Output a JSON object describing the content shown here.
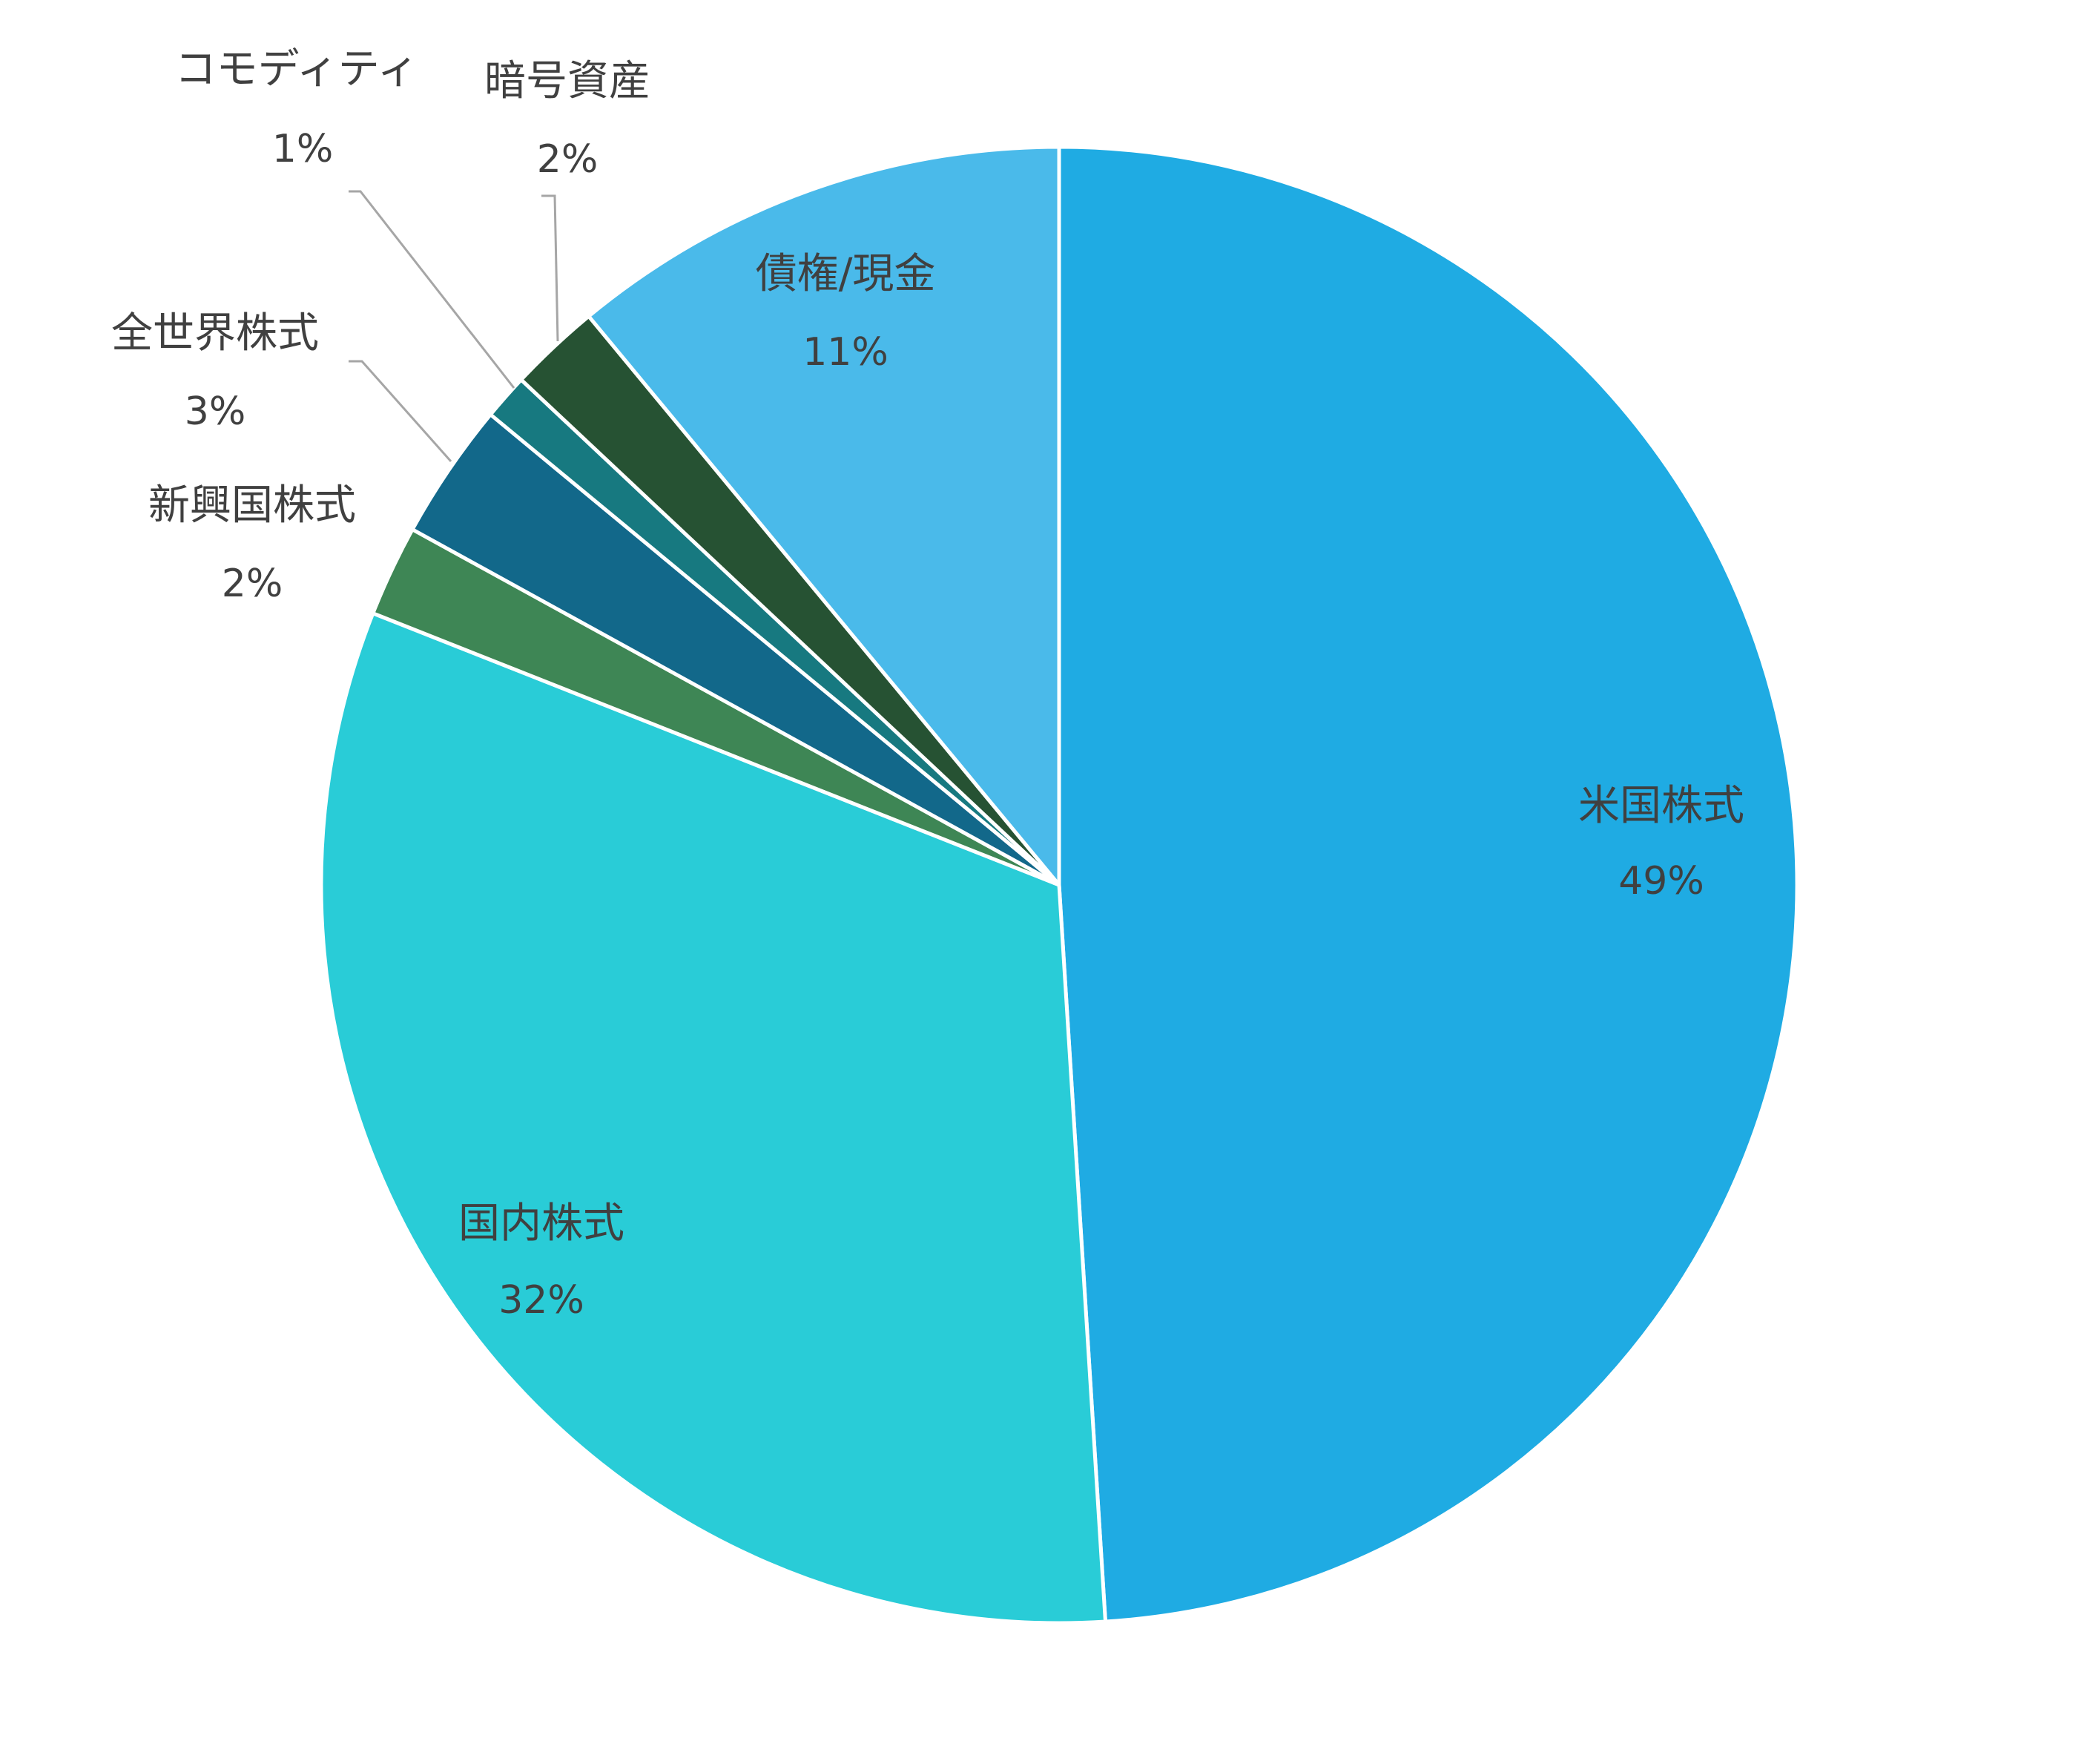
{
  "chart_data": {
    "type": "pie",
    "title": "",
    "start_angle_deg": 0,
    "direction": "clockwise",
    "slice_border_color": "#ffffff",
    "slices": [
      {
        "label": "米国株式",
        "value": 49,
        "value_label": "49%",
        "color": "#1FABE3"
      },
      {
        "label": "国内株式",
        "value": 32,
        "value_label": "32%",
        "color": "#29CCD7"
      },
      {
        "label": "新興国株式",
        "value": 2,
        "value_label": "2%",
        "color": "#3E8655"
      },
      {
        "label": "全世界株式",
        "value": 3,
        "value_label": "3%",
        "color": "#12688A"
      },
      {
        "label": "コモディティ",
        "value": 1,
        "value_label": "1%",
        "color": "#177980"
      },
      {
        "label": "暗号資産",
        "value": 2,
        "value_label": "2%",
        "color": "#265233"
      },
      {
        "label": "債権/現金",
        "value": 11,
        "value_label": "11%",
        "color": "#4ABAEA"
      }
    ]
  }
}
